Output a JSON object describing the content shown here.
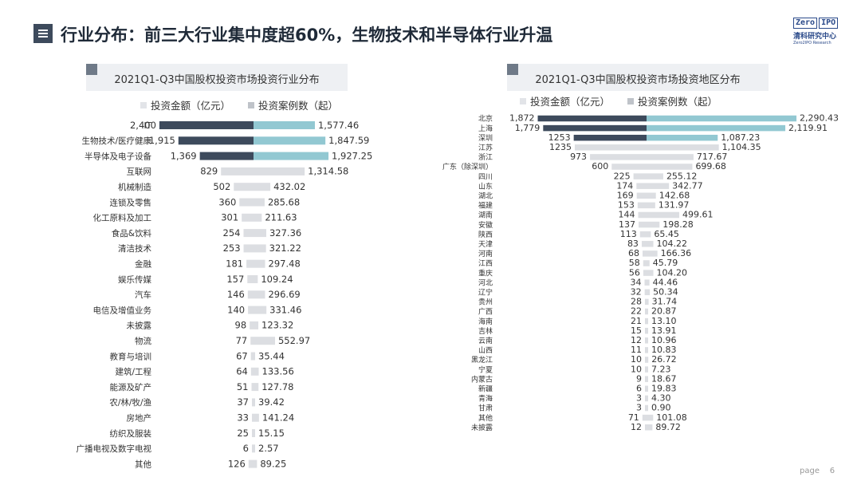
{
  "header": {
    "title": "行业分布：前三大行业集中度超60%，生物技术和半导体行业升温",
    "logo_box_a": "Zero",
    "logo_box_b": "IPO",
    "logo_cn": "清科研究中心",
    "logo_en": "Zero2IPO Research"
  },
  "footer": {
    "page_label": "page",
    "page_number": "6"
  },
  "colors": {
    "amount": "#3d4a5c",
    "cases_top": "#92c8d2",
    "cases": "#dcdee2",
    "page_bg": "#ffffff"
  },
  "chart_data": [
    {
      "type": "bar",
      "orientation": "horizontal-diverging",
      "title": "2021Q1-Q3中国股权投资市场投资行业分布",
      "legend": [
        "投资金额（亿元）",
        "投资案例数（起）"
      ],
      "categories": [
        "IT",
        "生物技术/医疗健康",
        "半导体及电子设备",
        "互联网",
        "机械制造",
        "连锁及零售",
        "化工原料及加工",
        "食品&饮料",
        "清洁技术",
        "金融",
        "娱乐传媒",
        "汽车",
        "电信及增值业务",
        "未披露",
        "物流",
        "教育与培训",
        "建筑/工程",
        "能源及矿产",
        "农/林/牧/渔",
        "房地产",
        "纺织及服装",
        "广播电视及数字电视",
        "其他"
      ],
      "series": [
        {
          "name": "投资金额（亿元）",
          "values": [
            2400,
            1915,
            1369,
            829,
            502,
            360,
            301,
            254,
            253,
            181,
            157,
            146,
            140,
            98,
            77,
            67,
            64,
            51,
            37,
            33,
            25,
            6,
            126
          ],
          "labels": [
            "2,400",
            "1,915",
            "1,369",
            "829",
            "502",
            "360",
            "301",
            "254",
            "253",
            "181",
            "157",
            "146",
            "140",
            "98",
            "77",
            "67",
            "64",
            "51",
            "37",
            "33",
            "25",
            "6",
            "126"
          ]
        },
        {
          "name": "投资案例数（起）",
          "values": [
            1577.46,
            1847.59,
            1927.25,
            1314.58,
            432.02,
            285.68,
            211.63,
            327.36,
            321.22,
            297.48,
            109.24,
            296.69,
            331.46,
            123.32,
            552.97,
            35.44,
            133.56,
            127.78,
            39.42,
            141.24,
            15.15,
            2.57,
            89.25
          ],
          "labels": [
            "1,577.46",
            "1,847.59",
            "1,927.25",
            "1,314.58",
            "432.02",
            "285.68",
            "211.63",
            "327.36",
            "321.22",
            "297.48",
            "109.24",
            "296.69",
            "331.46",
            "123.32",
            "552.97",
            "35.44",
            "133.56",
            "127.78",
            "39.42",
            "141.24",
            "15.15",
            "2.57",
            "89.25"
          ]
        }
      ]
    },
    {
      "type": "bar",
      "orientation": "horizontal-diverging",
      "title": "2021Q1-Q3中国股权投资市场投资地区分布",
      "legend": [
        "投资金额（亿元）",
        "投资案例数（起）"
      ],
      "categories": [
        "北京",
        "上海",
        "深圳",
        "江苏",
        "浙江",
        "广东（除深圳）",
        "四川",
        "山东",
        "湖北",
        "福建",
        "湖南",
        "安徽",
        "陕西",
        "天津",
        "河南",
        "江西",
        "重庆",
        "河北",
        "辽宁",
        "贵州",
        "广西",
        "海南",
        "吉林",
        "云南",
        "山西",
        "黑龙江",
        "宁夏",
        "内蒙古",
        "新疆",
        "青海",
        "甘肃",
        "其他",
        "未披露"
      ],
      "series": [
        {
          "name": "投资金额（亿元）",
          "values": [
            1872,
            1779,
            1253,
            1235,
            973,
            600,
            225,
            174,
            169,
            153,
            144,
            137,
            113,
            83,
            68,
            58,
            56,
            34,
            32,
            28,
            22,
            21,
            15,
            12,
            11,
            10,
            10,
            9,
            6,
            3,
            3,
            71,
            12
          ],
          "labels": [
            "1,872",
            "1,779",
            "1253",
            "1235",
            "973",
            "600",
            "225",
            "174",
            "169",
            "153",
            "144",
            "137",
            "113",
            "83",
            "68",
            "58",
            "56",
            "34",
            "32",
            "28",
            "22",
            "21",
            "15",
            "12",
            "11",
            "10",
            "10",
            "9",
            "6",
            "3",
            "3",
            "71",
            "12"
          ]
        },
        {
          "name": "投资案例数（起）",
          "values": [
            2290.43,
            2119.91,
            1087.23,
            1104.35,
            717.67,
            699.68,
            255.12,
            342.77,
            142.68,
            131.97,
            499.61,
            198.28,
            65.45,
            104.22,
            166.36,
            45.79,
            104.2,
            44.46,
            50.34,
            31.74,
            20.87,
            13.1,
            13.91,
            10.96,
            10.83,
            26.72,
            7.23,
            18.67,
            19.83,
            4.3,
            0.9,
            101.08,
            89.72
          ],
          "labels": [
            "2,290.43",
            "2,119.91",
            "1,087.23",
            "1,104.35",
            "717.67",
            "699.68",
            "255.12",
            "342.77",
            "142.68",
            "131.97",
            "499.61",
            "198.28",
            "65.45",
            "104.22",
            "166.36",
            "45.79",
            "104.20",
            "44.46",
            "50.34",
            "31.74",
            "20.87",
            "13.10",
            "13.91",
            "10.96",
            "10.83",
            "26.72",
            "7.23",
            "18.67",
            "19.83",
            "4.30",
            "0.90",
            "101.08",
            "89.72"
          ]
        }
      ]
    }
  ]
}
